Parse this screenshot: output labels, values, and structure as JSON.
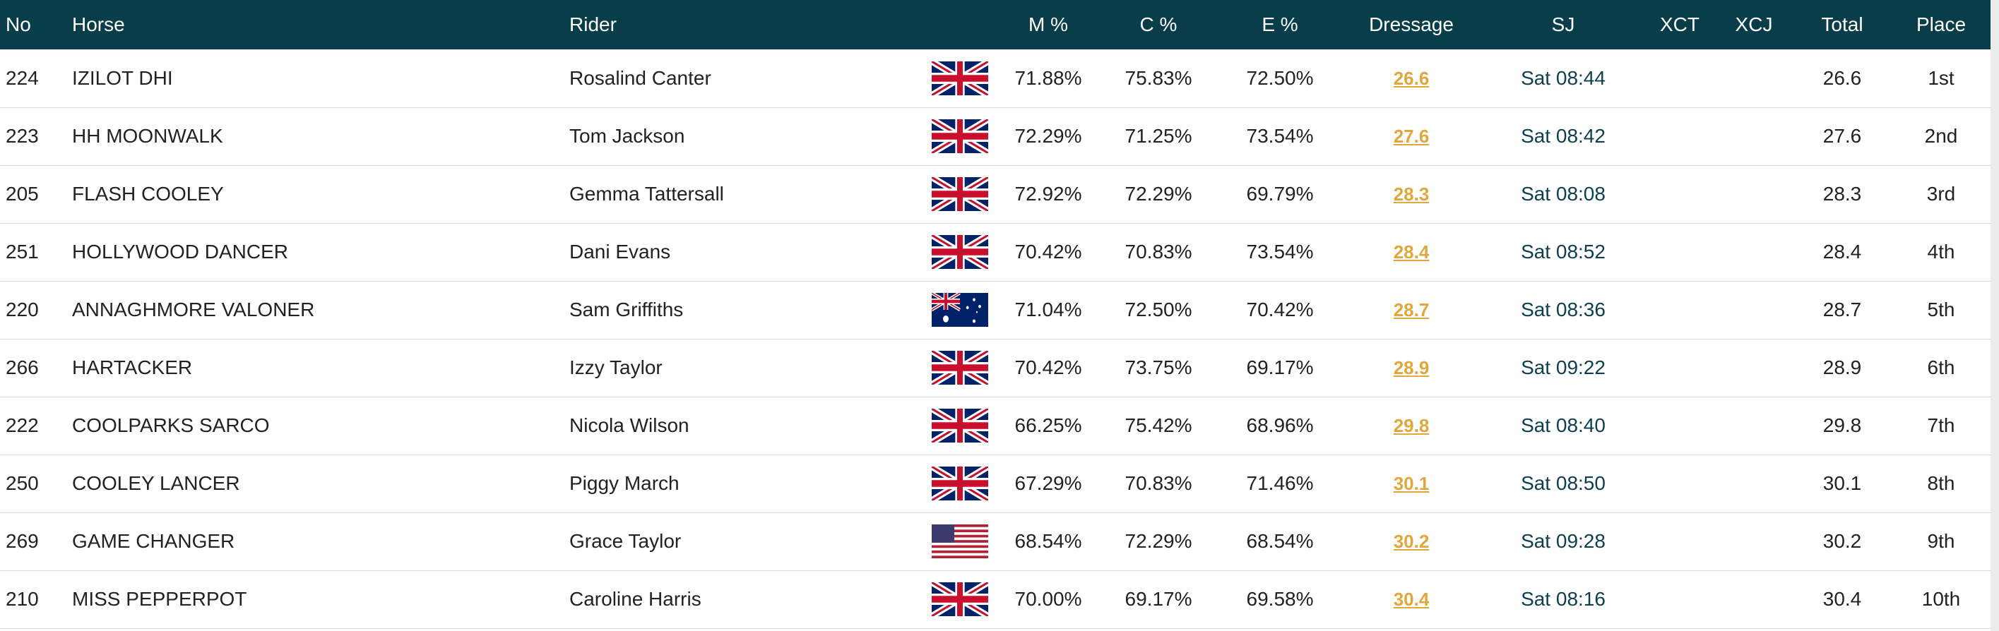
{
  "header": {
    "no": "No",
    "horse": "Horse",
    "rider": "Rider",
    "flag": "",
    "m": "M %",
    "c": "C %",
    "e": "E %",
    "dressage": "Dressage",
    "sj": "SJ",
    "xct": "XCT",
    "xcj": "XCJ",
    "total": "Total",
    "place": "Place"
  },
  "rows": [
    {
      "no": "224",
      "horse": "IZILOT DHI",
      "rider": "Rosalind Canter",
      "flag": "gb-flag",
      "m": "71.88%",
      "c": "75.83%",
      "e": "72.50%",
      "dressage": "26.6",
      "sj": "Sat 08:44",
      "xct": "",
      "xcj": "",
      "total": "26.6",
      "place": "1st"
    },
    {
      "no": "223",
      "horse": "HH MOONWALK",
      "rider": "Tom Jackson",
      "flag": "gb-flag",
      "m": "72.29%",
      "c": "71.25%",
      "e": "73.54%",
      "dressage": "27.6",
      "sj": "Sat 08:42",
      "xct": "",
      "xcj": "",
      "total": "27.6",
      "place": "2nd"
    },
    {
      "no": "205",
      "horse": "FLASH COOLEY",
      "rider": "Gemma Tattersall",
      "flag": "gb-flag",
      "m": "72.92%",
      "c": "72.29%",
      "e": "69.79%",
      "dressage": "28.3",
      "sj": "Sat 08:08",
      "xct": "",
      "xcj": "",
      "total": "28.3",
      "place": "3rd"
    },
    {
      "no": "251",
      "horse": "HOLLYWOOD DANCER",
      "rider": "Dani Evans",
      "flag": "gb-flag",
      "m": "70.42%",
      "c": "70.83%",
      "e": "73.54%",
      "dressage": "28.4",
      "sj": "Sat 08:52",
      "xct": "",
      "xcj": "",
      "total": "28.4",
      "place": "4th"
    },
    {
      "no": "220",
      "horse": "ANNAGHMORE VALONER",
      "rider": "Sam Griffiths",
      "flag": "au-flag",
      "m": "71.04%",
      "c": "72.50%",
      "e": "70.42%",
      "dressage": "28.7",
      "sj": "Sat 08:36",
      "xct": "",
      "xcj": "",
      "total": "28.7",
      "place": "5th"
    },
    {
      "no": "266",
      "horse": "HARTACKER",
      "rider": "Izzy Taylor",
      "flag": "gb-flag",
      "m": "70.42%",
      "c": "73.75%",
      "e": "69.17%",
      "dressage": "28.9",
      "sj": "Sat 09:22",
      "xct": "",
      "xcj": "",
      "total": "28.9",
      "place": "6th"
    },
    {
      "no": "222",
      "horse": "COOLPARKS SARCO",
      "rider": "Nicola Wilson",
      "flag": "gb-flag",
      "m": "66.25%",
      "c": "75.42%",
      "e": "68.96%",
      "dressage": "29.8",
      "sj": "Sat 08:40",
      "xct": "",
      "xcj": "",
      "total": "29.8",
      "place": "7th"
    },
    {
      "no": "250",
      "horse": "COOLEY LANCER",
      "rider": "Piggy March",
      "flag": "gb-flag",
      "m": "67.29%",
      "c": "70.83%",
      "e": "71.46%",
      "dressage": "30.1",
      "sj": "Sat 08:50",
      "xct": "",
      "xcj": "",
      "total": "30.1",
      "place": "8th"
    },
    {
      "no": "269",
      "horse": "GAME CHANGER",
      "rider": "Grace Taylor",
      "flag": "us-flag",
      "m": "68.54%",
      "c": "72.29%",
      "e": "68.54%",
      "dressage": "30.2",
      "sj": "Sat 09:28",
      "xct": "",
      "xcj": "",
      "total": "30.2",
      "place": "9th"
    },
    {
      "no": "210",
      "horse": "MISS PEPPERPOT",
      "rider": "Caroline Harris",
      "flag": "gb-flag",
      "m": "70.00%",
      "c": "69.17%",
      "e": "69.58%",
      "dressage": "30.4",
      "sj": "Sat 08:16",
      "xct": "",
      "xcj": "",
      "total": "30.4",
      "place": "10th"
    }
  ],
  "colors": {
    "header_bg": "#083d49",
    "dressage_link": "#e0a83c",
    "sj_text": "#0d3f4f"
  }
}
